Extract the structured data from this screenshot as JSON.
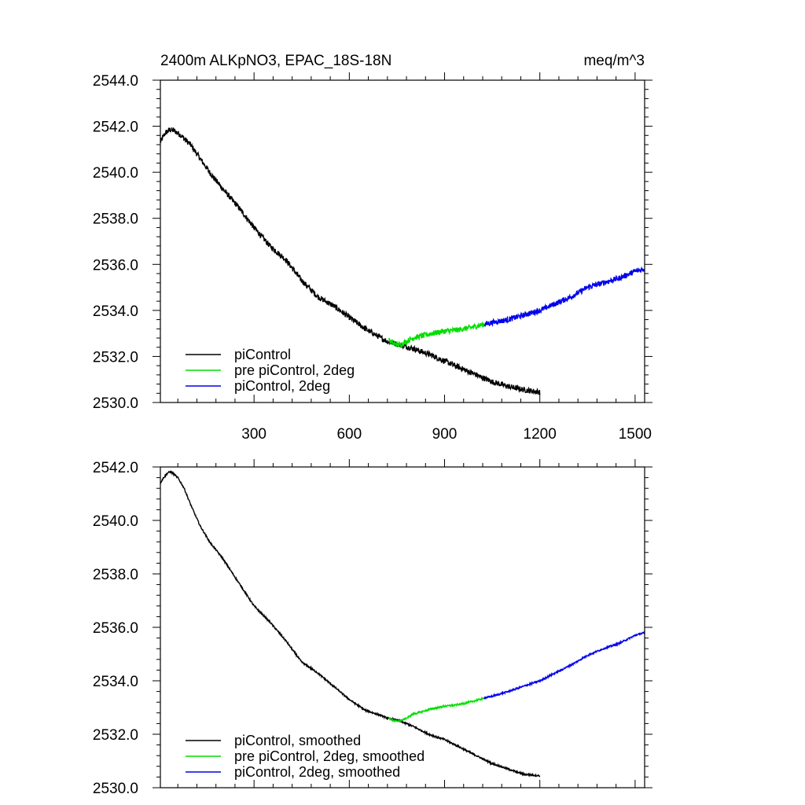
{
  "chart_data": [
    {
      "type": "line",
      "title": "2400m ALKpNO3, EPAC_18S-18N",
      "units": "meq/m^3",
      "xlim": [
        5,
        1530
      ],
      "ylim": [
        2530,
        2544
      ],
      "x_ticks": [
        300,
        600,
        900,
        1200,
        1500
      ],
      "x_tick_labels": [
        "300",
        "600",
        "900",
        "1200",
        "1500"
      ],
      "y_ticks": [
        2530,
        2532,
        2534,
        2536,
        2538,
        2540,
        2542,
        2544
      ],
      "y_tick_labels": [
        "2530.0",
        "2532.0",
        "2534.0",
        "2536.0",
        "2538.0",
        "2540.0",
        "2542.0",
        "2544.0"
      ],
      "noise": 0.12,
      "series": [
        {
          "name": "piControl",
          "color": "#000000",
          "x": [
            5,
            20,
            35,
            50,
            70,
            100,
            130,
            160,
            200,
            250,
            300,
            350,
            400,
            450,
            500,
            550,
            600,
            650,
            700,
            720,
            760,
            800,
            850,
            900,
            950,
            1000,
            1050,
            1100,
            1150,
            1200
          ],
          "y": [
            2541.3,
            2541.7,
            2541.85,
            2541.8,
            2541.6,
            2541.2,
            2540.6,
            2540.0,
            2539.3,
            2538.5,
            2537.6,
            2536.8,
            2536.2,
            2535.3,
            2534.6,
            2534.2,
            2533.7,
            2533.2,
            2532.8,
            2532.65,
            2532.5,
            2532.35,
            2532.1,
            2531.8,
            2531.5,
            2531.2,
            2530.9,
            2530.7,
            2530.55,
            2530.45
          ]
        },
        {
          "name": "pre piControl, 2deg",
          "color": "#00dd00",
          "x": [
            725,
            740,
            760,
            780,
            800,
            830,
            860,
            900,
            940,
            980,
            1025
          ],
          "y": [
            2532.7,
            2532.55,
            2532.5,
            2532.65,
            2532.8,
            2532.9,
            2533.0,
            2533.1,
            2533.15,
            2533.25,
            2533.4
          ]
        },
        {
          "name": "piControl, 2deg",
          "color": "#0000ee",
          "x": [
            1025,
            1060,
            1100,
            1150,
            1200,
            1250,
            1300,
            1350,
            1400,
            1450,
            1500,
            1530
          ],
          "y": [
            2533.4,
            2533.5,
            2533.6,
            2533.8,
            2534.0,
            2534.3,
            2534.6,
            2535.0,
            2535.2,
            2535.4,
            2535.7,
            2535.8
          ]
        }
      ],
      "legend": {
        "position": "bottom-left",
        "entries": [
          "piControl",
          "pre piControl, 2deg",
          "piControl, 2deg"
        ]
      }
    },
    {
      "type": "line",
      "title": "",
      "xlim": [
        5,
        1530
      ],
      "ylim": [
        2530,
        2542
      ],
      "x_ticks": [
        300,
        600,
        900,
        1200,
        1500
      ],
      "x_tick_labels": [],
      "y_ticks": [
        2530,
        2532,
        2534,
        2536,
        2538,
        2540,
        2542
      ],
      "y_tick_labels": [
        "2530.0",
        "2532.0",
        "2534.0",
        "2536.0",
        "2538.0",
        "2540.0",
        "2542.0"
      ],
      "noise": 0.03,
      "series": [
        {
          "name": "piControl, smoothed",
          "color": "#000000",
          "x": [
            5,
            15,
            30,
            40,
            60,
            80,
            100,
            130,
            160,
            200,
            250,
            300,
            350,
            400,
            450,
            500,
            550,
            600,
            650,
            700,
            720,
            760,
            800,
            850,
            900,
            950,
            1000,
            1050,
            1100,
            1150,
            1200
          ],
          "y": [
            2541.4,
            2541.6,
            2541.8,
            2541.8,
            2541.6,
            2541.2,
            2540.6,
            2539.8,
            2539.2,
            2538.6,
            2537.7,
            2536.8,
            2536.2,
            2535.5,
            2534.7,
            2534.3,
            2533.8,
            2533.3,
            2532.9,
            2532.7,
            2532.6,
            2532.5,
            2532.3,
            2532.0,
            2531.8,
            2531.5,
            2531.2,
            2530.9,
            2530.7,
            2530.5,
            2530.45
          ]
        },
        {
          "name": "pre piControl, 2deg, smoothed",
          "color": "#00dd00",
          "x": [
            725,
            740,
            760,
            780,
            800,
            830,
            860,
            900,
            940,
            980,
            1025
          ],
          "y": [
            2532.6,
            2532.5,
            2532.5,
            2532.6,
            2532.75,
            2532.85,
            2532.95,
            2533.05,
            2533.1,
            2533.2,
            2533.35
          ]
        },
        {
          "name": "piControl, 2deg, smoothed",
          "color": "#0000ee",
          "x": [
            1025,
            1060,
            1100,
            1150,
            1200,
            1250,
            1300,
            1350,
            1400,
            1450,
            1500,
            1530
          ],
          "y": [
            2533.35,
            2533.45,
            2533.6,
            2533.8,
            2534.0,
            2534.3,
            2534.6,
            2534.95,
            2535.2,
            2535.4,
            2535.7,
            2535.8
          ]
        }
      ],
      "legend": {
        "position": "bottom-left",
        "entries": [
          "piControl, smoothed",
          "pre piControl, 2deg, smoothed",
          "piControl, 2deg, smoothed"
        ]
      }
    }
  ]
}
